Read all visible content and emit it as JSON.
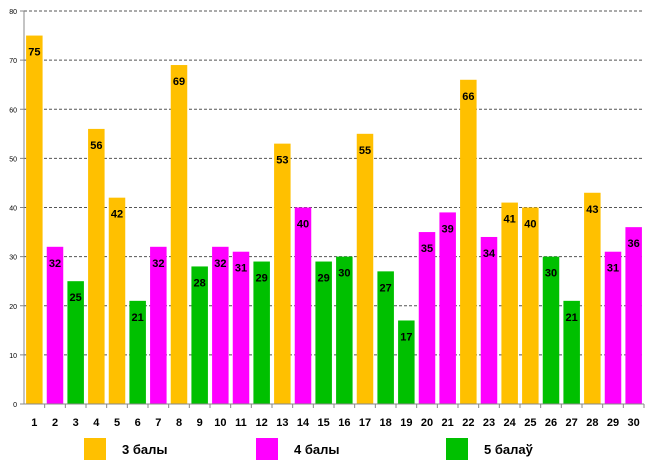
{
  "chart_data": {
    "type": "bar",
    "title": "",
    "xlabel": "",
    "ylabel": "",
    "ylim": [
      0,
      80
    ],
    "yticks": [
      0,
      10,
      20,
      30,
      40,
      50,
      60,
      70,
      80
    ],
    "grid": true,
    "categories": [
      "1",
      "2",
      "3",
      "4",
      "5",
      "6",
      "7",
      "8",
      "9",
      "10",
      "11",
      "12",
      "13",
      "14",
      "15",
      "16",
      "17",
      "18",
      "19",
      "20",
      "21",
      "22",
      "23",
      "24",
      "25",
      "26",
      "27",
      "28",
      "29",
      "30"
    ],
    "values": [
      75,
      32,
      25,
      56,
      42,
      21,
      32,
      69,
      28,
      32,
      31,
      29,
      53,
      40,
      29,
      30,
      55,
      27,
      17,
      35,
      39,
      66,
      34,
      41,
      40,
      30,
      21,
      43,
      31,
      36
    ],
    "value_labels": [
      "75",
      "32",
      "25",
      "56",
      "42",
      "21",
      "32",
      "69",
      "28",
      "32",
      "31",
      "29",
      "53",
      "40",
      "29",
      "30",
      "55",
      "27",
      "17",
      "35",
      "39",
      "66",
      "34",
      "41",
      "40",
      "30",
      "21",
      "43",
      "31",
      "36"
    ],
    "bar_series": [
      "s3",
      "s4",
      "s5",
      "s3",
      "s3",
      "s5",
      "s4",
      "s3",
      "s5",
      "s4",
      "s4",
      "s5",
      "s3",
      "s4",
      "s5",
      "s5",
      "s3",
      "s5",
      "s5",
      "s4",
      "s4",
      "s3",
      "s4",
      "s3",
      "s3",
      "s5",
      "s5",
      "s3",
      "s4",
      "s4"
    ],
    "series": [
      {
        "key": "s3",
        "name": "3 балы",
        "color": "#FFC000"
      },
      {
        "key": "s4",
        "name": "4 балы",
        "color": "#FF00FF"
      },
      {
        "key": "s5",
        "name": "5 балаў",
        "color": "#00C000"
      }
    ],
    "legend_position": "bottom"
  },
  "legend": {
    "items": [
      {
        "label": "3 балы",
        "color": "#FFC000"
      },
      {
        "label": "4 балы",
        "color": "#FF00FF"
      },
      {
        "label": "5 балаў",
        "color": "#00C000"
      }
    ]
  }
}
